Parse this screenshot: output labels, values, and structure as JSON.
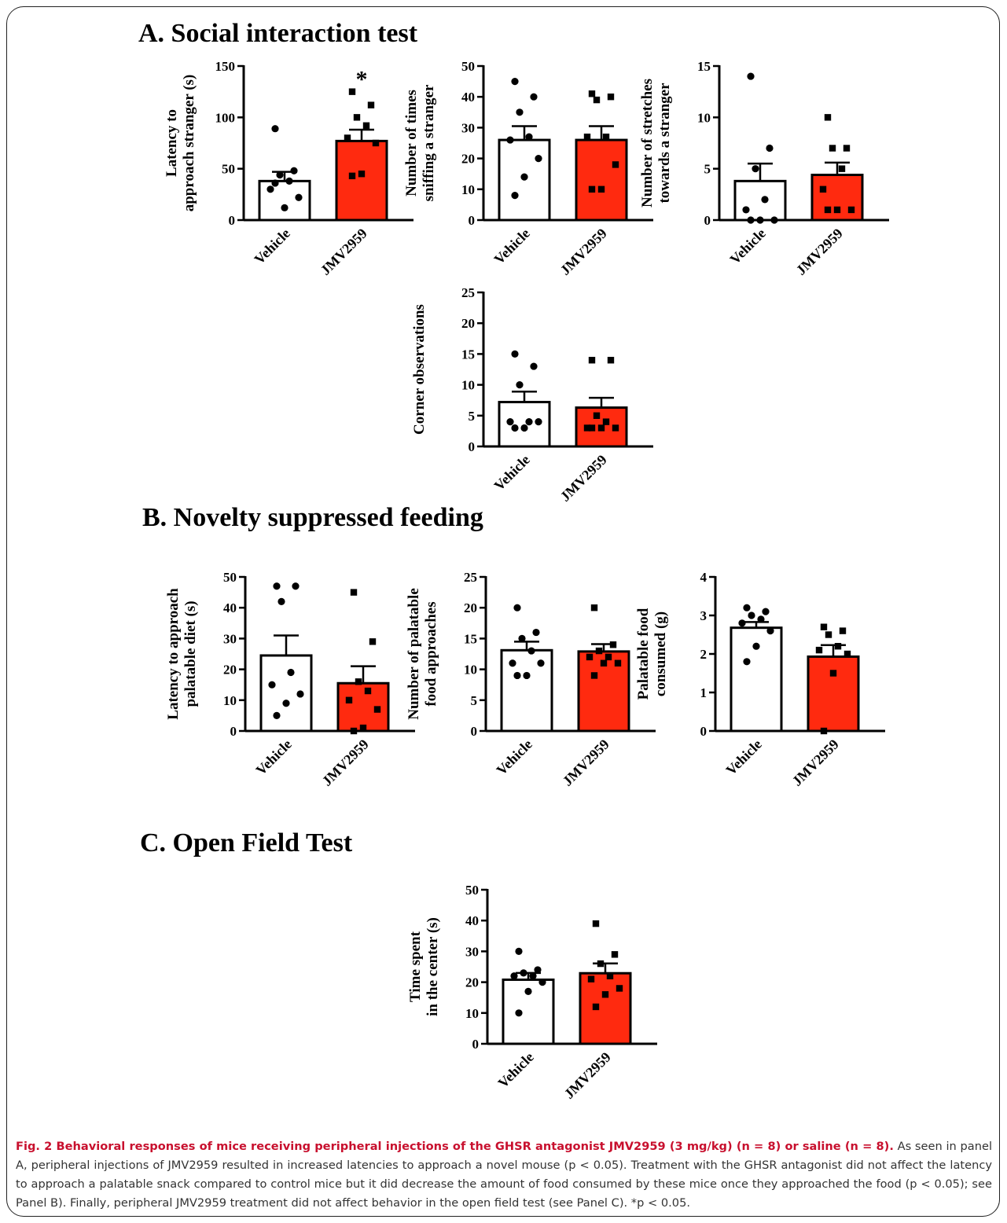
{
  "figure": {
    "panels": [
      {
        "id": "A",
        "title": "A. Social interaction test"
      },
      {
        "id": "B",
        "title": "B. Novelty suppressed feeding"
      },
      {
        "id": "C",
        "title": "C. Open Field Test"
      }
    ],
    "caption": {
      "lead": "Fig. 2 Behavioral responses of mice receiving peripheral injections of the GHSR antagonist JMV2959 (3 mg/kg) (n = 8) or saline (n = 8).",
      "body": " As seen in panel A, peripheral injections of JMV2959 resulted in increased latencies to approach a novel mouse (p < 0.05). Treatment with the GHSR antagonist did not affect the latency to approach a palatable snack compared to control mice but it did decrease the amount of food consumed by these mice once they approached the food (p < 0.05); see Panel B). Finally, peripheral JMV2959 treatment did not affect behavior in the open field test (see Panel C). *p < 0.05."
    },
    "colors": {
      "vehicle_fill": "#ffffff",
      "jmv_fill": "#ff2a0f",
      "axis": "#000000"
    }
  },
  "chart_data": [
    {
      "type": "bar",
      "panel": "A",
      "categories": [
        "Vehicle",
        "JMV2959"
      ],
      "ylabel": [
        "Latency to",
        "approach stranger (s)"
      ],
      "ylim": [
        0,
        150
      ],
      "yticks": [
        0,
        50,
        100,
        150
      ],
      "means": [
        38,
        77
      ],
      "sem": [
        9,
        11
      ],
      "points": [
        [
          89,
          48,
          44,
          38,
          30,
          22,
          12,
          36
        ],
        [
          125,
          112,
          100,
          92,
          80,
          75,
          45,
          43
        ]
      ],
      "annotations": [
        {
          "text": "*",
          "category": "JMV2959"
        }
      ]
    },
    {
      "type": "bar",
      "panel": "A",
      "categories": [
        "Vehicle",
        "JMV2959"
      ],
      "ylabel": [
        "Number of times",
        "sniffing a stranger"
      ],
      "ylim": [
        0,
        50
      ],
      "yticks": [
        0,
        10,
        20,
        30,
        40,
        50
      ],
      "means": [
        26,
        26
      ],
      "sem": [
        4.5,
        4.5
      ],
      "points": [
        [
          45,
          40,
          35,
          27,
          26,
          20,
          14,
          8
        ],
        [
          41,
          40,
          39,
          27,
          27,
          18,
          10,
          10
        ]
      ]
    },
    {
      "type": "bar",
      "panel": "A",
      "categories": [
        "Vehicle",
        "JMV2959"
      ],
      "ylabel": [
        "Number of stretches",
        "towards a stranger"
      ],
      "ylim": [
        0,
        15
      ],
      "yticks": [
        0,
        5,
        10,
        15
      ],
      "means": [
        3.8,
        4.4
      ],
      "sem": [
        1.7,
        1.2
      ],
      "points": [
        [
          14,
          7,
          5,
          2,
          1,
          0,
          0,
          0
        ],
        [
          10,
          7,
          7,
          5,
          3,
          1,
          1,
          1
        ]
      ]
    },
    {
      "type": "bar",
      "panel": "A",
      "categories": [
        "Vehicle",
        "JMV2959"
      ],
      "ylabel": [
        "Corner observations"
      ],
      "ylim": [
        0,
        25
      ],
      "yticks": [
        0,
        5,
        10,
        15,
        20,
        25
      ],
      "means": [
        7.2,
        6.3
      ],
      "sem": [
        1.7,
        1.6
      ],
      "points": [
        [
          15,
          13,
          10,
          4,
          4,
          4,
          3,
          3
        ],
        [
          14,
          14,
          5,
          4,
          3,
          3,
          3,
          3
        ]
      ]
    },
    {
      "type": "bar",
      "panel": "B",
      "categories": [
        "Vehicle",
        "JMV2959"
      ],
      "ylabel": [
        "Latency to approach",
        "palatable diet (s)"
      ],
      "ylim": [
        0,
        50
      ],
      "yticks": [
        0,
        10,
        20,
        30,
        40,
        50
      ],
      "means": [
        24.5,
        15.5
      ],
      "sem": [
        6.5,
        5.5
      ],
      "points": [
        [
          47,
          47,
          42,
          19,
          15,
          12,
          9,
          5
        ],
        [
          45,
          29,
          16,
          13,
          10,
          7,
          1,
          0
        ]
      ]
    },
    {
      "type": "bar",
      "panel": "B",
      "categories": [
        "Vehicle",
        "JMV2959"
      ],
      "ylabel": [
        "Number of palatable",
        "food approaches"
      ],
      "ylim": [
        0,
        25
      ],
      "yticks": [
        0,
        5,
        10,
        15,
        20,
        25
      ],
      "means": [
        13.1,
        12.9
      ],
      "sem": [
        1.4,
        1.2
      ],
      "points": [
        [
          20,
          16,
          15,
          13,
          11,
          11,
          9,
          9
        ],
        [
          20,
          14,
          13,
          12,
          12,
          11,
          11,
          9
        ]
      ]
    },
    {
      "type": "bar",
      "panel": "B",
      "categories": [
        "Vehicle",
        "JMV2959"
      ],
      "ylabel": [
        "Palatable food",
        "consumed (g)"
      ],
      "ylim": [
        0,
        4
      ],
      "yticks": [
        0,
        1,
        2,
        3,
        4
      ],
      "means": [
        2.68,
        1.93
      ],
      "sem": [
        0.15,
        0.3
      ],
      "points": [
        [
          3.2,
          3.1,
          3.0,
          2.9,
          2.8,
          2.6,
          2.2,
          1.8
        ],
        [
          2.7,
          2.6,
          2.5,
          2.2,
          2.1,
          2.0,
          1.5,
          0
        ]
      ]
    },
    {
      "type": "bar",
      "panel": "C",
      "categories": [
        "Vehicle",
        "JMV2959"
      ],
      "ylabel": [
        "Time spent",
        "in the center (s)"
      ],
      "ylim": [
        0,
        50
      ],
      "yticks": [
        0,
        10,
        20,
        30,
        40,
        50
      ],
      "means": [
        20.8,
        22.9
      ],
      "sem": [
        2.2,
        3.2
      ],
      "points": [
        [
          30,
          24,
          23,
          22,
          22,
          20,
          17,
          10
        ],
        [
          39,
          29,
          26,
          22,
          21,
          18,
          16,
          12
        ]
      ]
    }
  ]
}
